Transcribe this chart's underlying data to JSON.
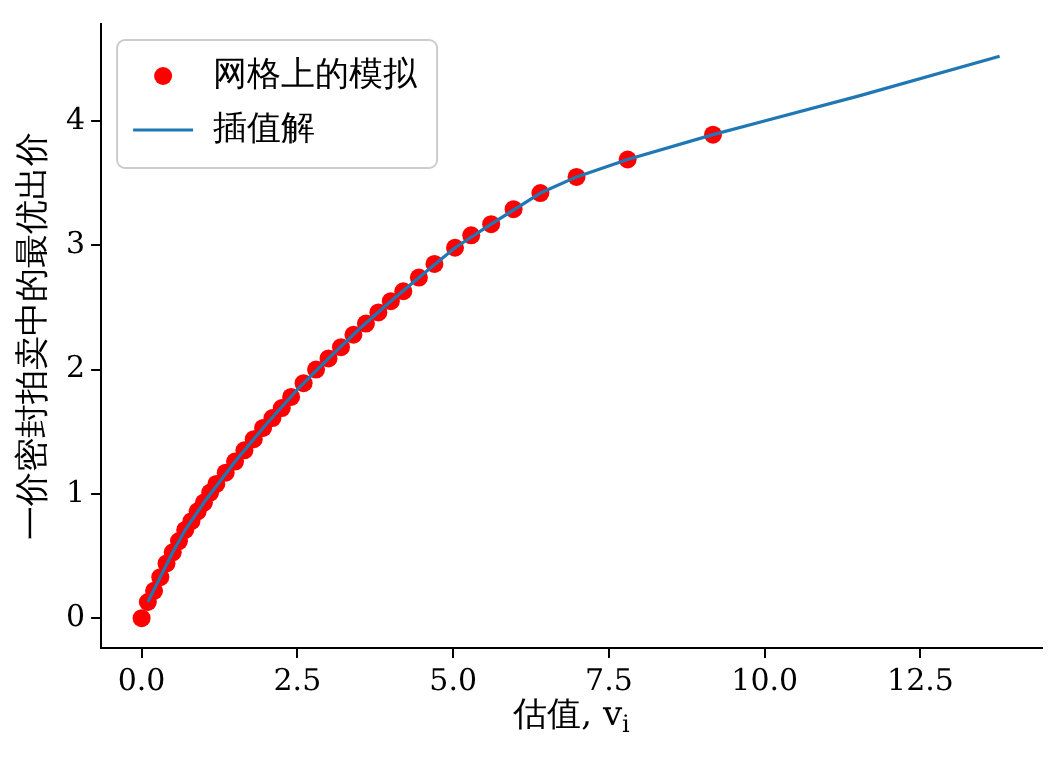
{
  "chart_data": {
    "type": "scatter",
    "xlabel": "估值, v$_{i}$",
    "ylabel": "一价密封拍卖中的最优出价",
    "xlim": [
      -0.65,
      14.45
    ],
    "ylim": [
      -0.24,
      4.78
    ],
    "xticks": [
      {
        "value": 0,
        "label": "0.0"
      },
      {
        "value": 2.5,
        "label": "2.5"
      },
      {
        "value": 5,
        "label": "5.0"
      },
      {
        "value": 7.5,
        "label": "7.5"
      },
      {
        "value": 10,
        "label": "10.0"
      },
      {
        "value": 12.5,
        "label": "12.5"
      }
    ],
    "yticks": [
      0,
      1,
      2,
      3,
      4
    ],
    "grid": false,
    "legend": "top left",
    "series": [
      {
        "name": "网格上的模拟",
        "marker": "circle",
        "color": "#ff0000",
        "x": [
          0,
          0.1,
          0.2,
          0.3,
          0.4,
          0.5,
          0.6,
          0.7,
          0.8,
          0.9,
          1.0,
          1.1,
          1.2,
          1.35,
          1.5,
          1.65,
          1.8,
          1.95,
          2.1,
          2.25,
          2.4,
          2.6,
          2.8,
          3.0,
          3.2,
          3.4,
          3.6,
          3.8,
          4.0,
          4.2,
          4.45,
          4.7,
          5.03,
          5.29,
          5.61,
          5.97,
          6.4,
          6.98,
          7.8,
          9.17
        ],
        "values": [
          0,
          0.13,
          0.22,
          0.33,
          0.44,
          0.53,
          0.62,
          0.71,
          0.78,
          0.86,
          0.93,
          1.01,
          1.08,
          1.17,
          1.26,
          1.35,
          1.44,
          1.53,
          1.61,
          1.69,
          1.78,
          1.89,
          2.0,
          2.09,
          2.18,
          2.28,
          2.37,
          2.46,
          2.55,
          2.63,
          2.74,
          2.85,
          2.98,
          3.08,
          3.17,
          3.29,
          3.42,
          3.55,
          3.69,
          3.89
        ]
      },
      {
        "name": "插值解",
        "type": "line",
        "marker": "none",
        "line_style": "solid",
        "color": "#1f77b4",
        "x": [
          0.1,
          0.3,
          0.5,
          0.7,
          1.0,
          1.5,
          2.0,
          2.5,
          3.0,
          3.5,
          4.0,
          4.5,
          5.03,
          5.61,
          6.4,
          6.98,
          7.8,
          9.17,
          11.5,
          13.77
        ],
        "values": [
          0.13,
          0.33,
          0.53,
          0.71,
          0.93,
          1.26,
          1.56,
          1.84,
          2.09,
          2.33,
          2.55,
          2.76,
          2.98,
          3.17,
          3.42,
          3.55,
          3.69,
          3.89,
          4.2,
          4.52
        ]
      }
    ]
  }
}
